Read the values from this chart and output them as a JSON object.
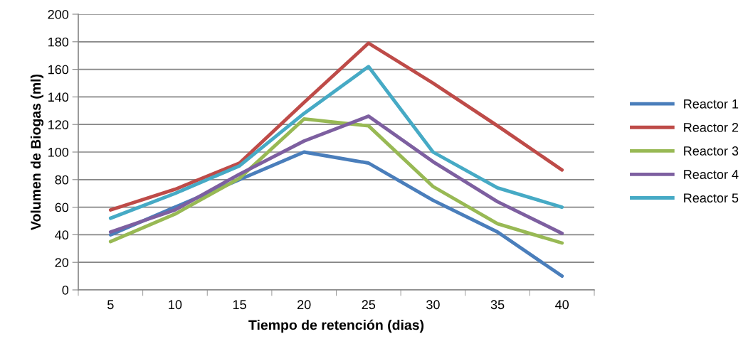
{
  "chart_data": {
    "type": "line",
    "xlabel": "Tiempo de retención (dias)",
    "ylabel": "Volumen de Biogas (ml)",
    "categories": [
      "5",
      "10",
      "15",
      "20",
      "25",
      "30",
      "35",
      "40"
    ],
    "series": [
      {
        "name": "Reactor 1",
        "color": "#4a7ebb",
        "values": [
          40,
          60,
          80,
          100,
          92,
          65,
          42,
          10
        ]
      },
      {
        "name": "Reactor 2",
        "color": "#be4b48",
        "values": [
          58,
          73,
          92,
          136,
          179,
          150,
          119,
          87
        ]
      },
      {
        "name": "Reactor 3",
        "color": "#98b954",
        "values": [
          35,
          55,
          81,
          124,
          119,
          75,
          48,
          34
        ]
      },
      {
        "name": "Reactor 4",
        "color": "#7d5fa0",
        "values": [
          42,
          58,
          84,
          108,
          126,
          93,
          64,
          41
        ]
      },
      {
        "name": "Reactor 5",
        "color": "#46aac5",
        "values": [
          52,
          70,
          90,
          128,
          162,
          100,
          74,
          60
        ]
      }
    ],
    "ylim": [
      0,
      200
    ],
    "yticks": [
      0,
      20,
      40,
      60,
      80,
      100,
      120,
      140,
      160,
      180,
      200
    ],
    "grid": "y",
    "legend": "right",
    "marker": "none",
    "line_style": "solid"
  }
}
